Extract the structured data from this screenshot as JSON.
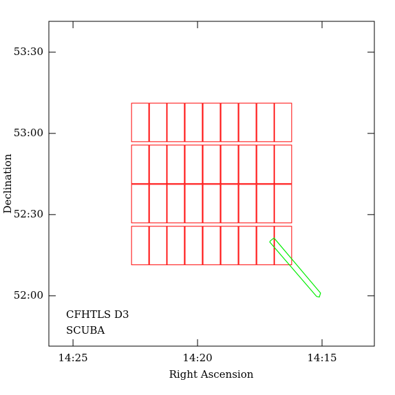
{
  "chart_data": {
    "type": "sky-map",
    "xlabel": "Right Ascension",
    "ylabel": "Declination",
    "xlim": [
      25.97,
      12.9
    ],
    "ylim": [
      51.69,
      53.69
    ],
    "xticks": [
      {
        "value": 25,
        "label": "14:25"
      },
      {
        "value": 20,
        "label": "14:20"
      },
      {
        "value": 15,
        "label": "14:15"
      }
    ],
    "yticks": [
      {
        "value": 53.5,
        "label": "53:30"
      },
      {
        "value": 53,
        "label": "53:00"
      },
      {
        "value": 52.5,
        "label": "52:30"
      },
      {
        "value": 52,
        "label": "52:00"
      }
    ],
    "series": [
      {
        "name": "CFHTLS D3",
        "color": "#ff0000",
        "columns": [
          [
            22.65,
            21.96
          ],
          [
            21.93,
            21.24
          ],
          [
            21.22,
            20.53
          ],
          [
            20.5,
            19.81
          ],
          [
            19.78,
            19.09
          ],
          [
            19.06,
            18.37
          ],
          [
            18.34,
            17.65
          ],
          [
            17.62,
            16.93
          ],
          [
            16.91,
            16.22
          ]
        ],
        "rows": [
          [
            52.949,
            53.186
          ],
          [
            52.691,
            52.928
          ],
          [
            52.449,
            52.686
          ],
          [
            52.191,
            52.428
          ]
        ]
      },
      {
        "name": "SCUBA",
        "color": "#00ee00",
        "x": [
          17.07,
          16.93,
          15.06,
          15.11,
          15.22,
          17.1
        ],
        "y": [
          52.339,
          52.356,
          52.017,
          51.992,
          51.996,
          52.331
        ]
      }
    ]
  }
}
